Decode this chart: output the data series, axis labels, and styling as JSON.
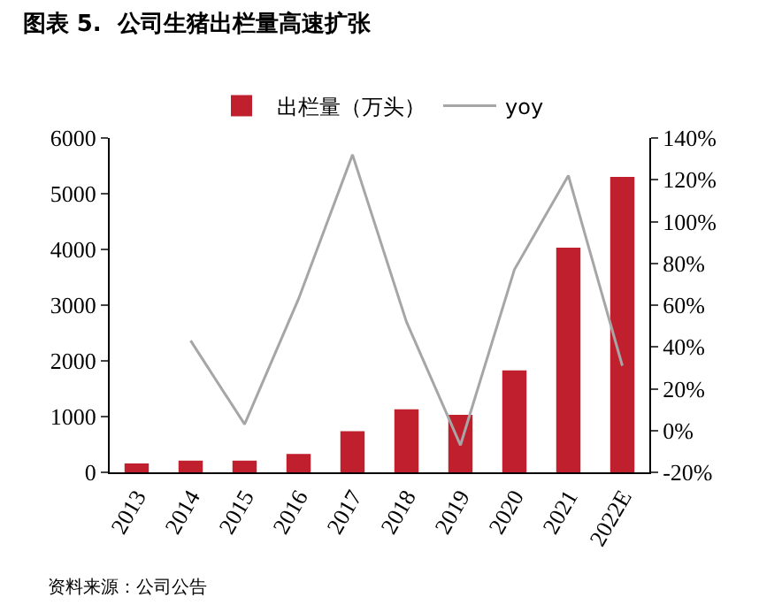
{
  "chart_data": {
    "type": "bar",
    "title": "图表 5.  公司生猪出栏量高速扩张",
    "categories": [
      "2013",
      "2014",
      "2015",
      "2016",
      "2017",
      "2018",
      "2019",
      "2020",
      "2021",
      "2022E"
    ],
    "series": [
      {
        "name": "出栏量（万头）",
        "color": "#c0202e",
        "values": [
          160,
          210,
          210,
          330,
          740,
          1130,
          1030,
          1830,
          4030,
          5300
        ]
      },
      {
        "name": "yoy",
        "type": "line",
        "axis": "y2",
        "color": "#a6a6a6",
        "values": [
          null,
          43,
          3,
          63,
          132,
          52,
          -7,
          77,
          122,
          31
        ]
      }
    ],
    "ylim": [
      0,
      6000
    ],
    "yticks": [
      0,
      1000,
      2000,
      3000,
      4000,
      5000,
      6000
    ],
    "y2lim": [
      -20,
      140
    ],
    "y2ticks": [
      {
        "value": -20,
        "label": "-20%"
      },
      {
        "value": 0,
        "label": "0%"
      },
      {
        "value": 20,
        "label": "20%"
      },
      {
        "value": 40,
        "label": "40%"
      },
      {
        "value": 60,
        "label": "60%"
      },
      {
        "value": 80,
        "label": "80%"
      },
      {
        "value": 100,
        "label": "100%"
      },
      {
        "value": 120,
        "label": "120%"
      },
      {
        "value": 140,
        "label": "140%"
      }
    ],
    "grid": false,
    "legend": "top",
    "annotations": [
      "资料来源：公司公告"
    ]
  }
}
